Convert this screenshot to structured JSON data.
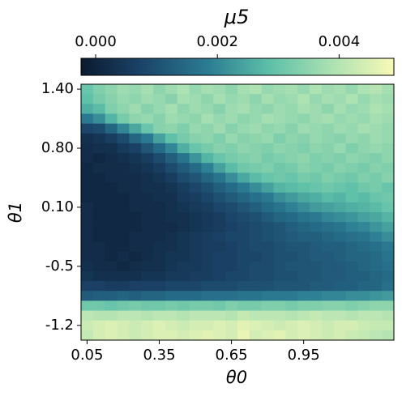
{
  "chart_data": {
    "type": "heatmap",
    "colorbar_label": "μ5",
    "x_label": "θ0",
    "y_label": "θ1",
    "x": [
      0.05,
      0.1,
      0.15,
      0.2,
      0.25,
      0.3,
      0.35,
      0.4,
      0.45,
      0.5,
      0.55,
      0.6,
      0.65,
      0.7,
      0.75,
      0.8,
      0.85,
      0.9,
      0.95,
      1,
      1.05,
      1.1,
      1.15,
      1.2,
      1.25,
      1.3
    ],
    "xlim": [
      0.025,
      1.325
    ],
    "xticks": [
      0.05,
      0.35,
      0.65,
      0.95
    ],
    "y": [
      "1.40",
      null,
      null,
      null,
      null,
      null,
      "0.80",
      null,
      null,
      null,
      null,
      null,
      "0.10",
      null,
      null,
      null,
      null,
      null,
      "-0.5",
      null,
      null,
      null,
      null,
      null,
      "-1.2",
      null
    ],
    "zlim": [
      -0.00024,
      0.0049
    ],
    "zticks": [
      {
        "value": 0,
        "label": "0.000"
      },
      {
        "value": 0.002,
        "label": "0.002"
      },
      {
        "value": 0.004,
        "label": "0.004"
      }
    ],
    "colormap": [
      "#0b1a30",
      "#1b456a",
      "#2a7a92",
      "#5cbfa8",
      "#abe1b2",
      "#f8f9b6"
    ],
    "z": [
      [
        0.003,
        0.0033,
        0.0035,
        0.0037,
        0.0036,
        0.0038,
        0.0035,
        0.0037,
        0.0039,
        0.0036,
        0.0038,
        0.0037,
        0.0035,
        0.0038,
        0.0039,
        0.0036,
        0.0037,
        0.0038,
        0.0036,
        0.0039,
        0.0037,
        0.0038,
        0.0036,
        0.0039,
        0.004,
        0.0038
      ],
      [
        0.0029,
        0.0032,
        0.0034,
        0.0036,
        0.0035,
        0.0037,
        0.0036,
        0.0034,
        0.0038,
        0.0037,
        0.0035,
        0.0038,
        0.0036,
        0.0037,
        0.0035,
        0.0038,
        0.0036,
        0.0037,
        0.0039,
        0.0036,
        0.0038,
        0.0037,
        0.0039,
        0.0036,
        0.0038,
        0.0037
      ],
      [
        0.0026,
        0.0028,
        0.0033,
        0.0035,
        0.0037,
        0.0034,
        0.0036,
        0.0038,
        0.0035,
        0.0037,
        0.0036,
        0.0034,
        0.0037,
        0.0038,
        0.0036,
        0.0035,
        0.0037,
        0.0036,
        0.0038,
        0.0037,
        0.0035,
        0.0038,
        0.0036,
        0.0037,
        0.0039,
        0.0038
      ],
      [
        0.0018,
        0.0021,
        0.0027,
        0.0032,
        0.0035,
        0.0036,
        0.0034,
        0.0037,
        0.0036,
        0.0035,
        0.0038,
        0.0036,
        0.0037,
        0.0035,
        0.0036,
        0.0038,
        0.0037,
        0.0036,
        0.0035,
        0.0037,
        0.0038,
        0.0036,
        0.0037,
        0.0036,
        0.0038,
        0.0037
      ],
      [
        0.0008,
        0.0009,
        0.0014,
        0.002,
        0.0025,
        0.003,
        0.0034,
        0.0035,
        0.0033,
        0.0036,
        0.0035,
        0.0037,
        0.0034,
        0.0036,
        0.0037,
        0.0035,
        0.0036,
        0.0034,
        0.0037,
        0.0036,
        0.0035,
        0.0037,
        0.0036,
        0.0038,
        0.0037,
        0.0036
      ],
      [
        0.0003,
        0.0004,
        0.0006,
        0.0009,
        0.0014,
        0.0018,
        0.0024,
        0.0029,
        0.0032,
        0.0034,
        0.0035,
        0.0033,
        0.0036,
        0.0034,
        0.0035,
        0.0036,
        0.0033,
        0.0035,
        0.0034,
        0.0036,
        0.0035,
        0.0034,
        0.0036,
        0.0035,
        0.0037,
        0.0036
      ],
      [
        0.0002,
        0.0003,
        0.0003,
        0.0005,
        0.0007,
        0.0011,
        0.0015,
        0.002,
        0.0026,
        0.003,
        0.0032,
        0.0034,
        0.0033,
        0.0035,
        0.0034,
        0.0033,
        0.0035,
        0.0034,
        0.0033,
        0.0035,
        0.0034,
        0.0036,
        0.0033,
        0.0035,
        0.0036,
        0.0035
      ],
      [
        0.0002,
        0.0001,
        0.0002,
        0.0003,
        0.0004,
        0.0006,
        0.0009,
        0.0013,
        0.0017,
        0.0022,
        0.0027,
        0.003,
        0.0032,
        0.0033,
        0.0034,
        0.0032,
        0.0033,
        0.0034,
        0.0035,
        0.0033,
        0.0034,
        0.0033,
        0.0035,
        0.0034,
        0.0033,
        0.0035
      ],
      [
        0.0001,
        0.0002,
        0.0002,
        0.0002,
        0.0003,
        0.0004,
        0.0006,
        0.0009,
        0.0012,
        0.0015,
        0.0019,
        0.0024,
        0.0028,
        0.0031,
        0.0032,
        0.0033,
        0.0031,
        0.0032,
        0.0034,
        0.0033,
        0.0032,
        0.0034,
        0.0033,
        0.0032,
        0.0034,
        0.0033
      ],
      [
        0.0001,
        0.0001,
        0.0002,
        0.0002,
        0.0002,
        0.0003,
        0.0004,
        0.0006,
        0.0009,
        0.0011,
        0.0014,
        0.0017,
        0.0021,
        0.0025,
        0.0028,
        0.003,
        0.0031,
        0.003,
        0.0032,
        0.0031,
        0.0033,
        0.0032,
        0.0031,
        0.0033,
        0.0032,
        0.0034
      ],
      [
        0.0001,
        0.0001,
        0.0001,
        0.0002,
        0.0002,
        0.0003,
        0.0003,
        0.0004,
        0.0006,
        0.0008,
        0.001,
        0.0013,
        0.0015,
        0.0018,
        0.0021,
        0.0024,
        0.0027,
        0.0028,
        0.0029,
        0.003,
        0.0031,
        0.003,
        0.0029,
        0.0031,
        0.0032,
        0.003
      ],
      [
        0.0001,
        0.0001,
        0.0001,
        0.0001,
        0.0002,
        0.0002,
        0.0003,
        0.0003,
        0.0005,
        0.0006,
        0.0008,
        0.001,
        0.0012,
        0.0014,
        0.0016,
        0.0018,
        0.0021,
        0.0023,
        0.0025,
        0.0026,
        0.0028,
        0.0027,
        0.0029,
        0.0028,
        0.003,
        0.0031
      ],
      [
        0.0002,
        0.0001,
        0.0001,
        0.0001,
        0.0002,
        0.0002,
        0.0002,
        0.0003,
        0.0004,
        0.0005,
        0.0006,
        0.0008,
        0.0009,
        0.0011,
        0.0013,
        0.0015,
        0.0017,
        0.0019,
        0.0021,
        0.0023,
        0.0024,
        0.0025,
        0.0026,
        0.0027,
        0.0028,
        0.003
      ],
      [
        0.0002,
        0.0001,
        0.0001,
        0.0001,
        0.0001,
        0.0002,
        0.0002,
        0.0003,
        0.0003,
        0.0004,
        0.0005,
        0.0006,
        0.0008,
        0.0009,
        0.001,
        0.0012,
        0.0014,
        0.0015,
        0.0017,
        0.0018,
        0.002,
        0.0021,
        0.0022,
        0.0024,
        0.0025,
        0.0027
      ],
      [
        0.0002,
        0.0001,
        0.0001,
        0.0001,
        0.0001,
        0.0002,
        0.0002,
        0.0002,
        0.0003,
        0.0004,
        0.0005,
        0.0006,
        0.0007,
        0.0008,
        0.0009,
        0.001,
        0.0011,
        0.0013,
        0.0014,
        0.0015,
        0.0016,
        0.0017,
        0.0019,
        0.002,
        0.0022,
        0.0024
      ],
      [
        0.0002,
        0.0001,
        0.0001,
        0.0001,
        0.0002,
        0.0002,
        0.0002,
        0.0003,
        0.0004,
        0.0005,
        0.0006,
        0.0007,
        0.0008,
        0.0008,
        0.0009,
        0.001,
        0.0011,
        0.0012,
        0.0013,
        0.0013,
        0.0014,
        0.0015,
        0.0016,
        0.0017,
        0.0019,
        0.0021
      ],
      [
        0.0002,
        0.0002,
        0.0001,
        0.0001,
        0.0002,
        0.0002,
        0.0003,
        0.0003,
        0.0004,
        0.0005,
        0.0006,
        0.0006,
        0.0007,
        0.0008,
        0.0009,
        0.0009,
        0.001,
        0.0011,
        0.0011,
        0.0012,
        0.0013,
        0.0013,
        0.0014,
        0.0015,
        0.0016,
        0.0018
      ],
      [
        0.0002,
        0.0002,
        0.0001,
        0.0002,
        0.0001,
        0.0002,
        0.0003,
        0.0004,
        0.0004,
        0.0005,
        0.0006,
        0.0007,
        0.0007,
        0.0008,
        0.0008,
        0.0009,
        0.001,
        0.001,
        0.0011,
        0.0012,
        0.0012,
        0.0013,
        0.0014,
        0.0014,
        0.0015,
        0.0017
      ],
      [
        0.0003,
        0.0002,
        0.0002,
        0.0001,
        0.0002,
        0.0003,
        0.0003,
        0.0004,
        0.0005,
        0.0005,
        0.0006,
        0.0007,
        0.0007,
        0.0008,
        0.0009,
        0.0009,
        0.001,
        0.0011,
        0.0011,
        0.0011,
        0.0012,
        0.0012,
        0.0013,
        0.0014,
        0.0015,
        0.0016
      ],
      [
        0.0004,
        0.0003,
        0.0003,
        0.0003,
        0.0003,
        0.0004,
        0.0004,
        0.0005,
        0.0005,
        0.0006,
        0.0006,
        0.0007,
        0.0008,
        0.0008,
        0.0009,
        0.0009,
        0.001,
        0.001,
        0.0011,
        0.0011,
        0.0012,
        0.0012,
        0.0013,
        0.0013,
        0.0014,
        0.0015
      ],
      [
        0.0007,
        0.0007,
        0.0006,
        0.0006,
        0.0007,
        0.0007,
        0.0007,
        0.0008,
        0.0008,
        0.0008,
        0.0009,
        0.0009,
        0.0009,
        0.001,
        0.001,
        0.001,
        0.0011,
        0.0011,
        0.0011,
        0.0012,
        0.0012,
        0.0013,
        0.0013,
        0.0014,
        0.0014,
        0.0016
      ],
      [
        0.0012,
        0.0013,
        0.0013,
        0.0014,
        0.0013,
        0.0014,
        0.0014,
        0.0015,
        0.0015,
        0.0015,
        0.0016,
        0.0016,
        0.0016,
        0.0017,
        0.0017,
        0.0018,
        0.0018,
        0.0018,
        0.0019,
        0.0019,
        0.002,
        0.002,
        0.0021,
        0.0021,
        0.0022,
        0.0023
      ],
      [
        0.0031,
        0.0031,
        0.003,
        0.0031,
        0.0032,
        0.0031,
        0.0031,
        0.0032,
        0.0031,
        0.0032,
        0.0032,
        0.0031,
        0.0033,
        0.0032,
        0.0032,
        0.0033,
        0.0033,
        0.0032,
        0.0033,
        0.0033,
        0.0034,
        0.0034,
        0.0033,
        0.0034,
        0.0035,
        0.0035
      ],
      [
        0.0041,
        0.004,
        0.004,
        0.0041,
        0.0041,
        0.004,
        0.0041,
        0.0041,
        0.004,
        0.0041,
        0.0041,
        0.0041,
        0.004,
        0.0042,
        0.0041,
        0.0041,
        0.0041,
        0.004,
        0.0041,
        0.0042,
        0.0041,
        0.0041,
        0.004,
        0.0041,
        0.0041,
        0.004
      ],
      [
        0.0043,
        0.0044,
        0.0045,
        0.0044,
        0.0043,
        0.0044,
        0.0045,
        0.0044,
        0.0043,
        0.0044,
        0.0044,
        0.0045,
        0.0044,
        0.0046,
        0.0045,
        0.0044,
        0.0043,
        0.0044,
        0.0045,
        0.0044,
        0.0043,
        0.0044,
        0.0044,
        0.0043,
        0.0042,
        0.0042
      ],
      [
        0.0042,
        0.0044,
        0.0045,
        0.0044,
        0.0043,
        0.0044,
        0.0045,
        0.0045,
        0.0044,
        0.0045,
        0.0046,
        0.0045,
        0.0044,
        0.0047,
        0.0044,
        0.0045,
        0.0046,
        0.0044,
        0.0045,
        0.0044,
        0.0043,
        0.0044,
        0.0043,
        0.0042,
        0.0041,
        0.004
      ]
    ]
  }
}
